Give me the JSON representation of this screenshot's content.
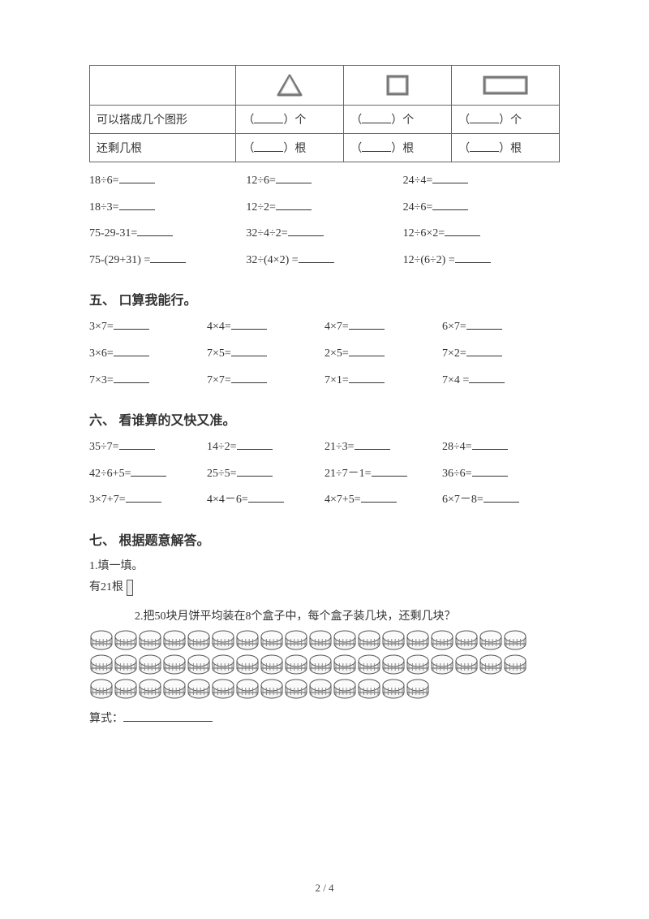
{
  "table": {
    "row1_label": "可以搭成几个图形",
    "row2_label": "还剩几根",
    "unit_count": "个",
    "unit_stick": "根",
    "open_paren": "（",
    "close_paren": "）"
  },
  "eq_block_a": [
    [
      "18÷6=",
      "12÷6=",
      "24÷4="
    ],
    [
      "18÷3=",
      "12÷2=",
      "24÷6="
    ],
    [
      "75-29-31=",
      "32÷4÷2=",
      "12÷6×2="
    ],
    [
      "75-(29+31) =",
      "32÷(4×2) =",
      "12÷(6÷2) ="
    ]
  ],
  "section5": {
    "title": "五、 口算我能行。",
    "rows": [
      [
        "3×7=",
        "4×4=",
        "4×7=",
        "6×7="
      ],
      [
        "3×6=",
        "7×5=",
        "2×5=",
        "7×2="
      ],
      [
        "7×3=",
        "7×7=",
        "7×1=",
        "7×4 ="
      ]
    ]
  },
  "section6": {
    "title": "六、 看谁算的又快又准。",
    "rows": [
      [
        "35÷7=",
        "14÷2=",
        "21÷3=",
        "28÷4="
      ],
      [
        "42÷6+5=",
        "25÷5=",
        "21÷7－1=",
        "36÷6="
      ],
      [
        "3×7+7=",
        "4×4－6=",
        "4×7+5=",
        "6×7－8="
      ]
    ]
  },
  "section7": {
    "title": "七、 根据题意解答。",
    "q1_label": "1.填一填。",
    "q1_text": "有21根",
    "q2_text": "2.把50块月饼平均装在8个盒子中，每个盒子装几块，还剩几块？",
    "formula_label": "算式："
  },
  "mooncake_rows": [
    18,
    18,
    14
  ],
  "footer": "2 / 4"
}
